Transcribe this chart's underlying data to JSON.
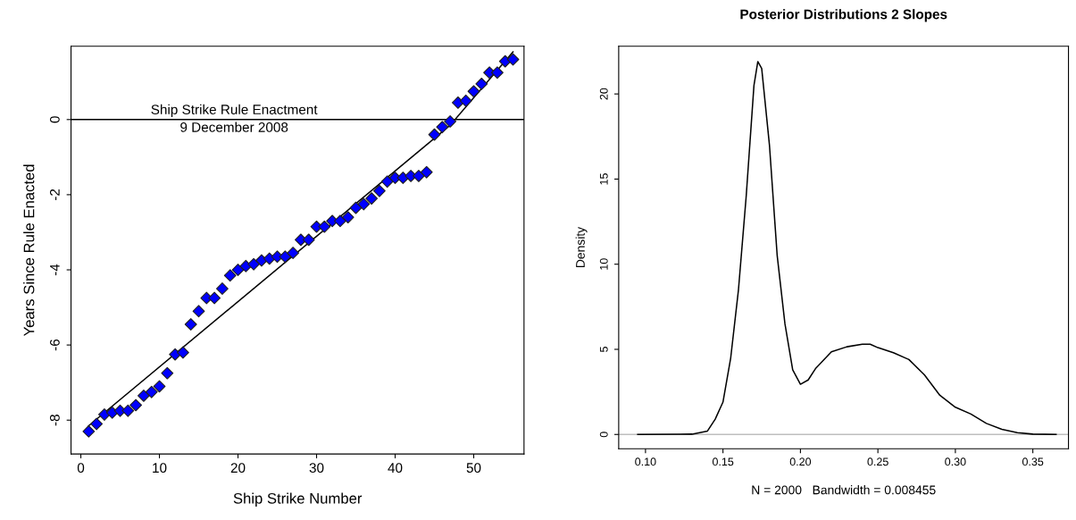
{
  "chart_data": [
    {
      "type": "scatter",
      "xlabel": "Ship Strike Number",
      "ylabel": "Years Since Rule Enacted",
      "xlim": [
        -1.25,
        56.4
      ],
      "ylim": [
        -8.9,
        1.95
      ],
      "xticks": [
        0,
        10,
        20,
        30,
        40,
        50
      ],
      "yticks": [
        -8,
        -6,
        -4,
        -2,
        0
      ],
      "grid": false,
      "series": [
        {
          "type": "scatter",
          "color": "#0000ff",
          "marker": "diamond",
          "x": [
            1,
            2,
            3,
            4,
            5,
            6,
            7,
            8,
            9,
            10,
            11,
            12,
            13,
            14,
            15,
            16,
            17,
            18,
            19,
            20,
            21,
            22,
            23,
            24,
            25,
            26,
            27,
            28,
            29,
            30,
            31,
            32,
            33,
            34,
            35,
            36,
            37,
            38,
            39,
            40,
            41,
            42,
            43,
            44,
            45,
            46,
            47,
            48,
            49,
            50,
            51,
            52,
            53,
            54,
            55
          ],
          "values": [
            -8.3,
            -8.1,
            -7.85,
            -7.8,
            -7.75,
            -7.75,
            -7.6,
            -7.35,
            -7.25,
            -7.1,
            -6.75,
            -6.25,
            -6.2,
            -5.45,
            -5.1,
            -4.75,
            -4.75,
            -4.5,
            -4.15,
            -4.0,
            -3.9,
            -3.85,
            -3.75,
            -3.7,
            -3.65,
            -3.65,
            -3.55,
            -3.2,
            -3.2,
            -2.85,
            -2.85,
            -2.7,
            -2.7,
            -2.6,
            -2.35,
            -2.25,
            -2.1,
            -1.9,
            -1.65,
            -1.55,
            -1.55,
            -1.5,
            -1.5,
            -1.4,
            -0.4,
            -0.2,
            -0.05,
            0.45,
            0.5,
            0.75,
            0.95,
            1.25,
            1.25,
            1.55,
            1.6
          ]
        },
        {
          "type": "line",
          "color": "#000000",
          "x": [
            1,
            47,
            55
          ],
          "values": [
            -8.15,
            -0.15,
            1.8
          ]
        }
      ],
      "ref_lines": [
        {
          "axis": "y",
          "value": 0,
          "color": "#000000",
          "label": "Ship Strike Rule Enactment\n9 December 2008"
        }
      ]
    },
    {
      "type": "line",
      "title": "Posterior Distributions 2 Slopes",
      "xlabel": "N = 2000   Bandwidth = 0.008455",
      "ylabel": "Density",
      "xlim": [
        0.0827,
        0.373
      ],
      "ylim": [
        -0.84,
        22.8
      ],
      "xticks": [
        {
          "value": 0.1,
          "label": "0.10"
        },
        0.15,
        {
          "value": 0.2,
          "label": "0.20"
        },
        0.25,
        {
          "value": 0.3,
          "label": "0.30"
        },
        0.35
      ],
      "yticks": [
        0,
        5,
        10,
        15,
        20
      ],
      "grid": false,
      "series": [
        {
          "color": "#000000",
          "x": [
            0.095,
            0.13,
            0.14,
            0.145,
            0.15,
            0.155,
            0.16,
            0.165,
            0.17,
            0.1725,
            0.175,
            0.18,
            0.185,
            0.19,
            0.195,
            0.2,
            0.205,
            0.21,
            0.22,
            0.23,
            0.24,
            0.245,
            0.25,
            0.26,
            0.27,
            0.28,
            0.29,
            0.3,
            0.31,
            0.32,
            0.33,
            0.34,
            0.35,
            0.365
          ],
          "values": [
            0,
            0.02,
            0.2,
            0.9,
            1.9,
            4.5,
            8.5,
            14,
            20.5,
            21.9,
            21.5,
            17,
            10.5,
            6.5,
            3.8,
            2.95,
            3.2,
            3.9,
            4.85,
            5.15,
            5.3,
            5.3,
            5.1,
            4.8,
            4.4,
            3.5,
            2.3,
            1.6,
            1.2,
            0.65,
            0.3,
            0.1,
            0.02,
            0
          ]
        }
      ],
      "ref_lines": [
        {
          "axis": "y",
          "value": 0,
          "color": "#bebebe"
        }
      ]
    }
  ]
}
